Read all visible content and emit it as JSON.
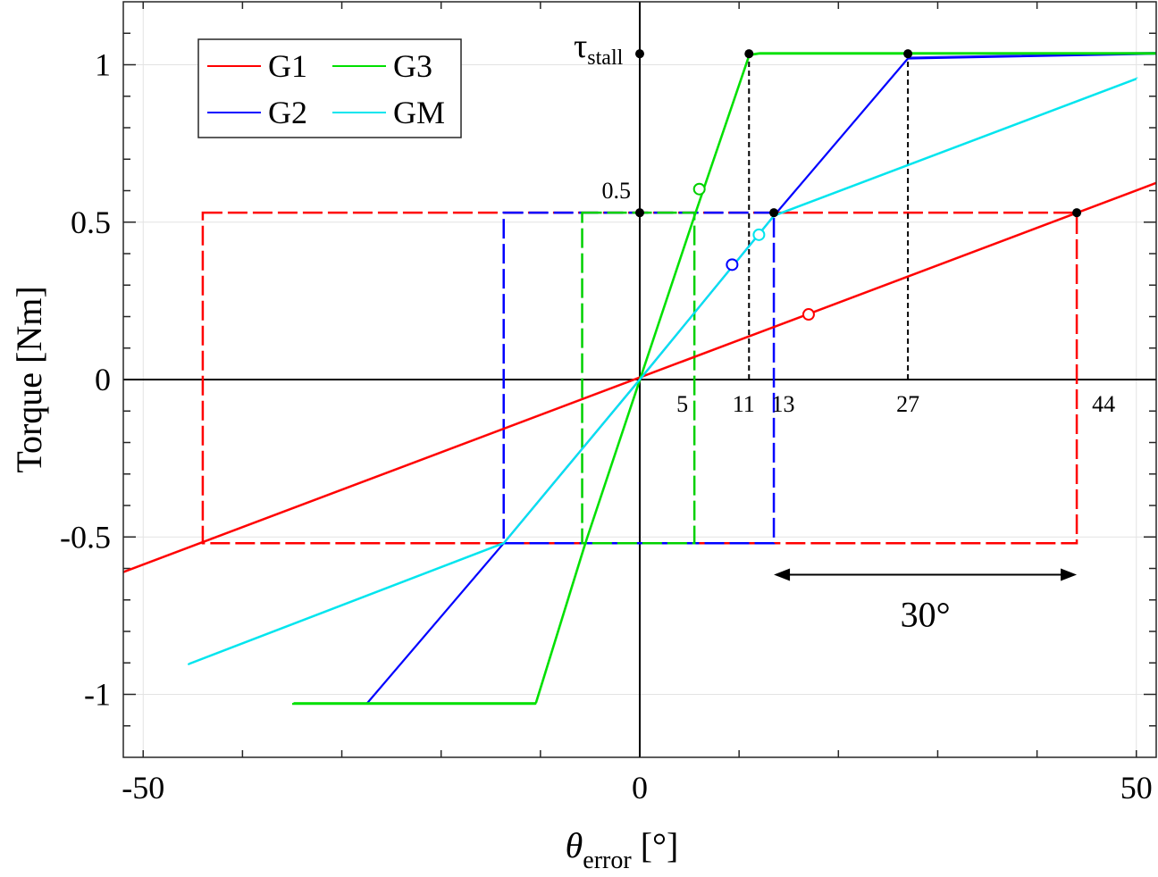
{
  "chart_data": {
    "type": "line",
    "xlabel": "θ",
    "xlabel_sub": "error",
    "xlabel_unit": "[°]",
    "ylabel": "Torque [Nm]",
    "xlim": [
      -52,
      52
    ],
    "ylim": [
      -1.2,
      1.2
    ],
    "xticks": [
      -50,
      0,
      50
    ],
    "xtick_labels": [
      "-50",
      "0",
      "50"
    ],
    "yticks": [
      -1,
      -0.5,
      0,
      0.5,
      1
    ],
    "ytick_labels": [
      "-1",
      "-0.5",
      "0",
      "0.5",
      "1"
    ],
    "grid": true,
    "legend_position": "top-left",
    "legend": [
      "G1",
      "G3",
      "G2",
      "GM"
    ],
    "series": [
      {
        "name": "G1",
        "color": "#ff0000",
        "x": [
          -52,
          52
        ],
        "y": [
          -0.612,
          0.624
        ]
      },
      {
        "name": "G2",
        "color": "#0000ff",
        "x": [
          -27.5,
          -13.7,
          0,
          13.5,
          27,
          52
        ],
        "y": [
          -1.03,
          -0.52,
          0,
          0.52,
          1.02,
          1.035
        ]
      },
      {
        "name": "G3",
        "color": "#00e000",
        "x": [
          -35,
          -10.5,
          -5.5,
          0,
          5.5,
          11,
          12,
          52
        ],
        "y": [
          -1.03,
          -1.03,
          -0.52,
          0,
          0.52,
          1.03,
          1.035,
          1.035
        ]
      },
      {
        "name": "GM",
        "color": "#00e5ee",
        "x": [
          -45.5,
          -13.7,
          0,
          13.5,
          50
        ],
        "y": [
          -0.905,
          -0.52,
          0,
          0.52,
          0.955
        ]
      }
    ],
    "rectangles": [
      {
        "color": "#ff0000",
        "x": [
          -44,
          44
        ],
        "y": [
          -0.52,
          0.53
        ]
      },
      {
        "color": "#0000ff",
        "x": [
          -13.7,
          13.5
        ],
        "y": [
          -0.52,
          0.53
        ]
      },
      {
        "color": "#00d000",
        "x": [
          -5.8,
          5.5
        ],
        "y": [
          -0.52,
          0.53
        ]
      }
    ],
    "guides": [
      {
        "x": 11,
        "y_from": 0,
        "y_to": 1.035
      },
      {
        "x": 27,
        "y_from": 0,
        "y_to": 1.035
      }
    ],
    "key_points": [
      {
        "x": 0,
        "y": 1.035
      },
      {
        "x": 11,
        "y": 1.035
      },
      {
        "x": 27,
        "y": 1.035
      },
      {
        "x": 0,
        "y": 0.53
      },
      {
        "x": 13.5,
        "y": 0.53
      },
      {
        "x": 44,
        "y": 0.53
      }
    ],
    "open_markers": [
      {
        "x": 6,
        "y": 0.605,
        "color": "#00d000"
      },
      {
        "x": 12,
        "y": 0.46,
        "color": "#00e5ee"
      },
      {
        "x": 9.3,
        "y": 0.365,
        "color": "#0000ff"
      },
      {
        "x": 17,
        "y": 0.207,
        "color": "#ff0000"
      }
    ],
    "x_annotations": [
      {
        "text": "5",
        "x": 5
      },
      {
        "text": "11",
        "x": 11
      },
      {
        "text": "13",
        "x": 13
      },
      {
        "text": "27",
        "x": 27
      },
      {
        "text": "44",
        "x": 44
      }
    ],
    "label_0_5": "0.5",
    "tau_symbol": "τ",
    "tau_sub": "stall",
    "span_arrow": {
      "x_from": 13.5,
      "x_to": 44,
      "y": -0.62,
      "label": "30°"
    }
  }
}
